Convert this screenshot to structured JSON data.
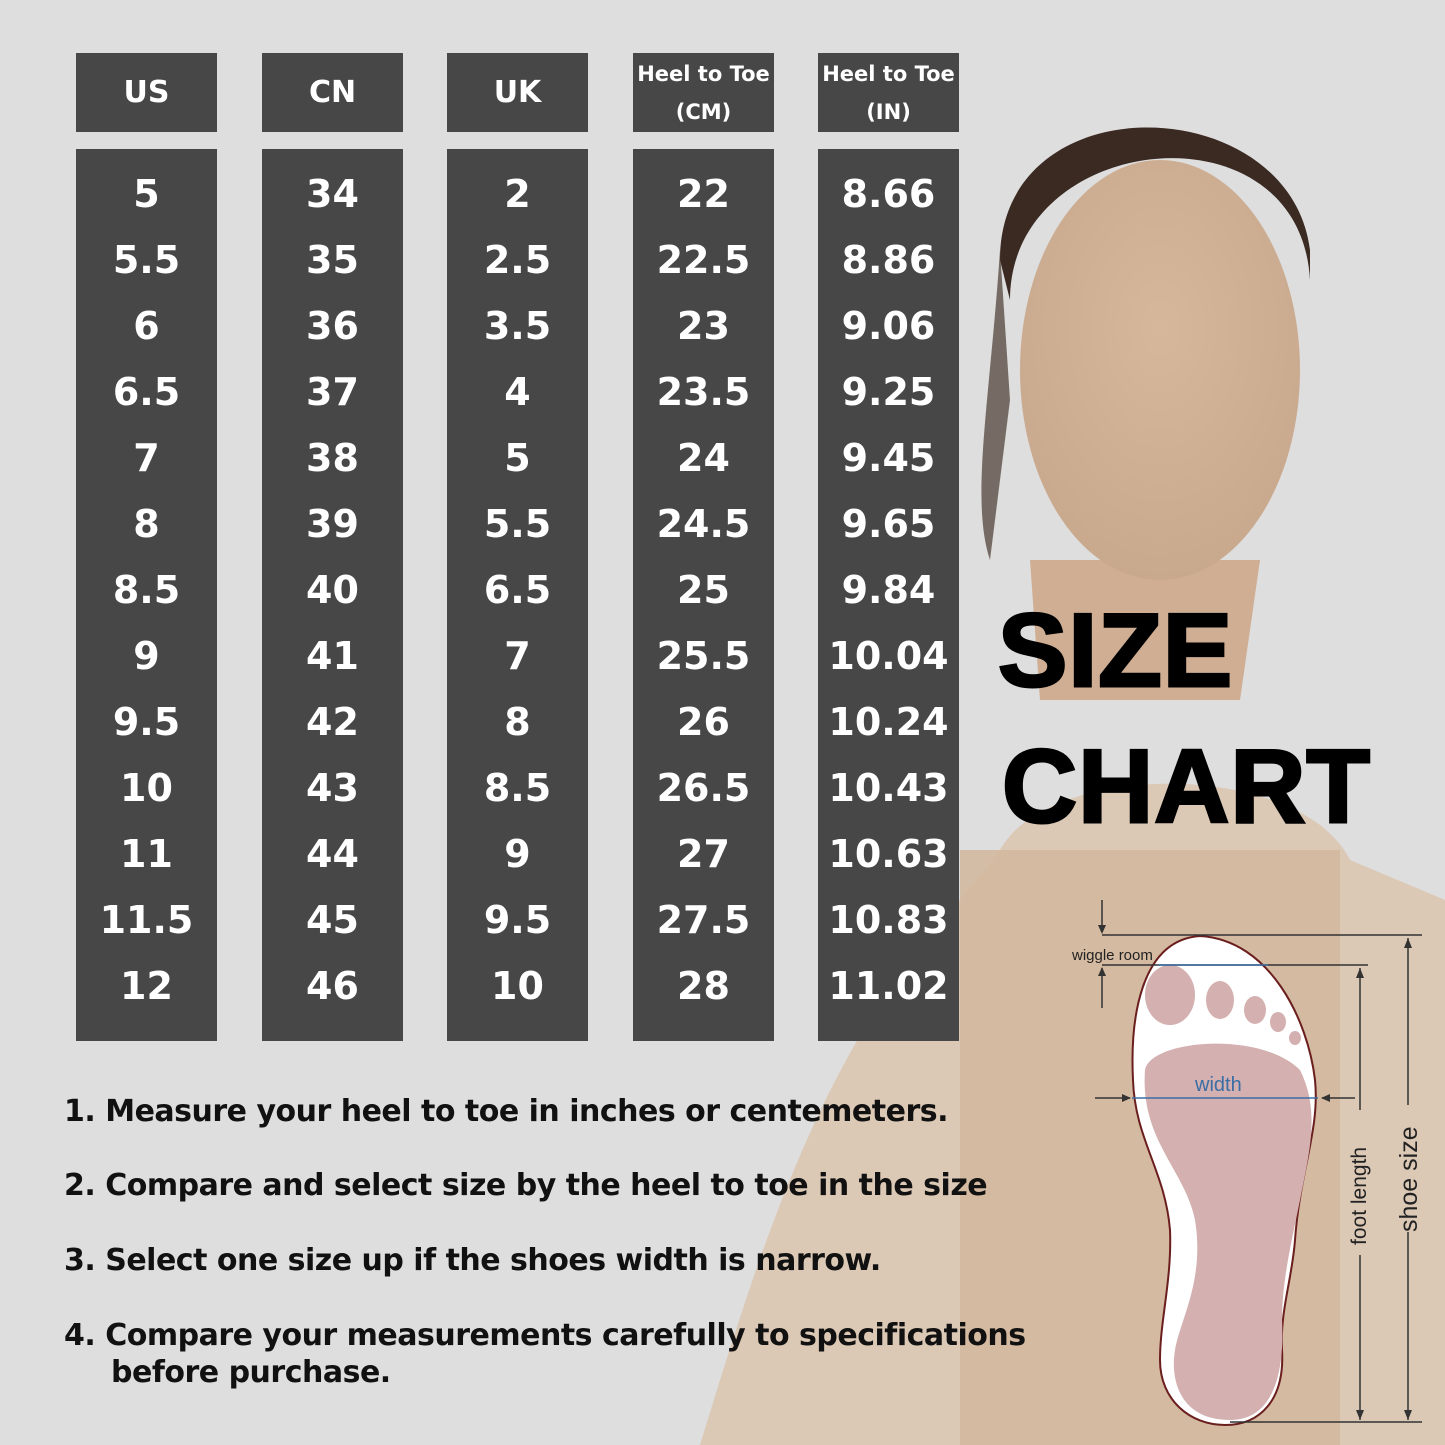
{
  "table": {
    "headers": [
      {
        "line1": "US"
      },
      {
        "line1": "CN"
      },
      {
        "line1": "UK"
      },
      {
        "line1": "Heel to Toe",
        "line2": "(CM)"
      },
      {
        "line1": "Heel to Toe",
        "line2": "(IN)"
      }
    ],
    "columns": [
      [
        "5",
        "5.5",
        "6",
        "6.5",
        "7",
        "8",
        "8.5",
        "9",
        "9.5",
        "10",
        "11",
        "11.5",
        "12"
      ],
      [
        "34",
        "35",
        "36",
        "37",
        "38",
        "39",
        "40",
        "41",
        "42",
        "43",
        "44",
        "45",
        "46"
      ],
      [
        "2",
        "2.5",
        "3.5",
        "4",
        "5",
        "5.5",
        "6.5",
        "7",
        "8",
        "8.5",
        "9",
        "9.5",
        "10"
      ],
      [
        "22",
        "22.5",
        "23",
        "23.5",
        "24",
        "24.5",
        "25",
        "25.5",
        "26",
        "26.5",
        "27",
        "27.5",
        "28"
      ],
      [
        "8.66",
        "8.86",
        "9.06",
        "9.25",
        "9.45",
        "9.65",
        "9.84",
        "10.04",
        "10.24",
        "10.43",
        "10.63",
        "10.83",
        "11.02"
      ]
    ]
  },
  "title": {
    "line1": "SIZE",
    "line2": "CHART"
  },
  "instructions": [
    "1. Measure your heel to toe in inches or centemeters.",
    "2. Compare and select size by the heel to toe in the size",
    "3. Select one size up if the shoes width is narrow.",
    "4. Compare your measurements carefully to specifications",
    "before purchase."
  ],
  "diagram": {
    "wiggle_room": "wiggle room",
    "width": "width",
    "foot_length": "foot length",
    "shoe_size": "shoe size"
  },
  "colors": {
    "panel": "#474747",
    "background": "#dedede",
    "foot": "#d4b0b0",
    "width_label": "#3a6ea5"
  }
}
